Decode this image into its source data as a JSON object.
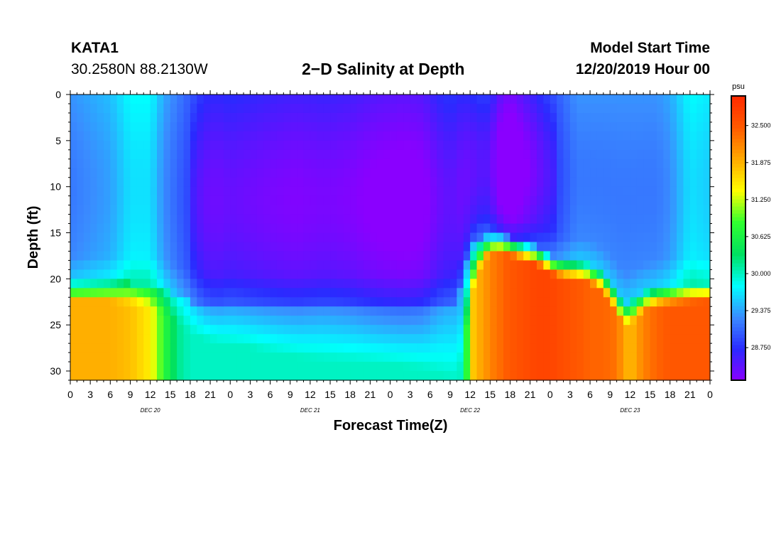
{
  "header": {
    "station": "KATA1",
    "coords": "30.2580N 88.2130W",
    "title": "2−D Salinity at Depth",
    "start_label": "Model Start Time",
    "start_time": "12/20/2019 Hour 00"
  },
  "chart_data": {
    "type": "heatmap",
    "title": "2−D Salinity at Depth",
    "xlabel": "Forecast Time(Z)",
    "ylabel": "Depth (ft)",
    "x_range_hours": [
      0,
      96
    ],
    "x_tick_labels": [
      "0",
      "3",
      "6",
      "9",
      "12",
      "15",
      "18",
      "21",
      "0",
      "3",
      "6",
      "9",
      "12",
      "15",
      "18",
      "21",
      "0",
      "3",
      "6",
      "9",
      "12",
      "15",
      "18",
      "21",
      "0",
      "3",
      "6",
      "9",
      "12",
      "15",
      "18",
      "21",
      "0"
    ],
    "day_labels": [
      "DEC 20",
      "DEC 21",
      "DEC 22",
      "DEC 23"
    ],
    "day_label_hours": [
      12,
      36,
      60,
      84
    ],
    "ylim": [
      0,
      31
    ],
    "y_ticks": [
      0,
      5,
      10,
      15,
      20,
      25,
      30
    ],
    "colorbar": {
      "unit": "psu",
      "range": [
        28.2,
        33.0
      ],
      "ticks": [
        "32.500",
        "31.875",
        "31.250",
        "30.625",
        "30.000",
        "29.375",
        "28.750"
      ],
      "tick_values": [
        32.5,
        31.875,
        31.25,
        30.625,
        30.0,
        29.375,
        28.75
      ],
      "colors": [
        "#8a00ff",
        "#2a2aff",
        "#3a8cff",
        "#00ffff",
        "#00e060",
        "#30ff30",
        "#ffff00",
        "#ffaa00",
        "#ff5a00",
        "#ff2a00"
      ]
    },
    "estimated_profile": {
      "hours": [
        0,
        6,
        9,
        12,
        14,
        16,
        18,
        20,
        22,
        24,
        27,
        30,
        34,
        38,
        42,
        46,
        50,
        53,
        55,
        57,
        58,
        59,
        60,
        61,
        62,
        63,
        64,
        65,
        66,
        68,
        70,
        72,
        74,
        76,
        78,
        80,
        82,
        83,
        84,
        86,
        88,
        90,
        93,
        96
      ],
      "surface_salinity": [
        29.3,
        29.5,
        29.8,
        29.8,
        29.4,
        29.2,
        29.0,
        28.75,
        28.7,
        28.75,
        28.7,
        28.65,
        28.6,
        28.65,
        28.6,
        28.5,
        28.45,
        28.5,
        28.7,
        28.8,
        28.75,
        28.7,
        28.75,
        28.8,
        28.85,
        28.8,
        28.5,
        28.4,
        28.3,
        28.5,
        28.7,
        28.9,
        29.1,
        29.3,
        29.3,
        29.3,
        29.3,
        29.3,
        29.3,
        29.3,
        29.3,
        29.4,
        29.8,
        29.7
      ],
      "halocline_top_ft": [
        20.5,
        20.5,
        20.5,
        20.6,
        21.0,
        21.8,
        22.5,
        22.8,
        23.0,
        23.0,
        23.0,
        23.0,
        23.0,
        23.0,
        23.0,
        23.0,
        23.0,
        23.0,
        23.0,
        23.0,
        22.5,
        19.5,
        16.5,
        15.8,
        15.5,
        15.3,
        15.2,
        15.2,
        15.5,
        16.0,
        16.5,
        17.5,
        18.0,
        18.2,
        18.5,
        19.5,
        21.5,
        22.8,
        22.5,
        21.5,
        21.0,
        20.8,
        20.6,
        20.5
      ],
      "halocline_thickness_ft": [
        2.0,
        2.0,
        2.2,
        2.5,
        2.8,
        3.0,
        3.5,
        3.8,
        4.0,
        4.2,
        4.5,
        5.0,
        5.5,
        5.8,
        6.0,
        6.2,
        6.5,
        6.8,
        7.2,
        7.8,
        8.5,
        9.0,
        6.0,
        4.0,
        2.5,
        2.0,
        2.0,
        2.0,
        2.0,
        2.0,
        2.0,
        2.0,
        2.0,
        2.0,
        2.0,
        2.0,
        2.2,
        2.5,
        2.5,
        2.0,
        2.0,
        2.0,
        2.0,
        2.0
      ],
      "bottom_salinity": [
        31.9,
        31.9,
        31.8,
        31.5,
        30.8,
        30.2,
        30.0,
        30.0,
        30.0,
        30.0,
        30.0,
        30.0,
        30.0,
        30.0,
        30.0,
        30.0,
        30.0,
        30.0,
        30.0,
        30.0,
        30.0,
        30.0,
        31.6,
        31.9,
        32.0,
        32.2,
        32.3,
        32.4,
        32.5,
        32.6,
        32.7,
        32.7,
        32.6,
        32.5,
        32.4,
        32.4,
        32.3,
        32.0,
        31.8,
        32.2,
        32.4,
        32.5,
        32.5,
        32.5
      ]
    }
  }
}
